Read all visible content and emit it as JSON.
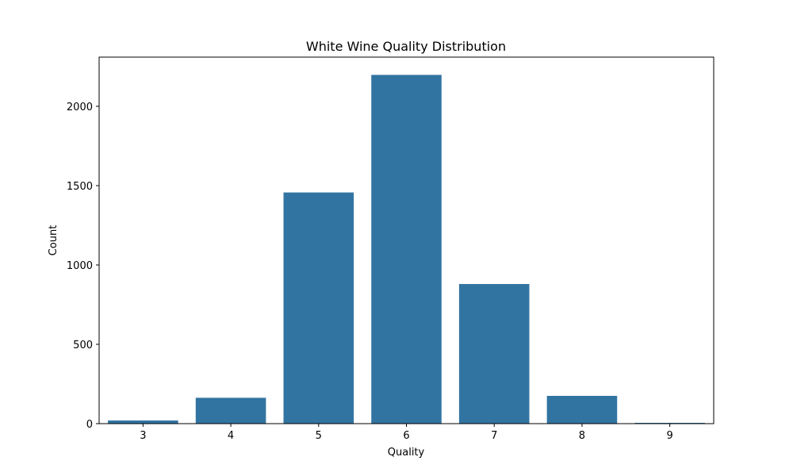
{
  "chart_data": {
    "type": "bar",
    "title": "White Wine Quality Distribution",
    "xlabel": "Quality",
    "ylabel": "Count",
    "categories": [
      "3",
      "4",
      "5",
      "6",
      "7",
      "8",
      "9"
    ],
    "values": [
      20,
      163,
      1457,
      2198,
      880,
      175,
      5
    ],
    "ylim": [
      0,
      2310
    ],
    "yticks": [
      0,
      500,
      1000,
      1500,
      2000
    ],
    "grid": false,
    "bar_color": "#3274a1"
  }
}
